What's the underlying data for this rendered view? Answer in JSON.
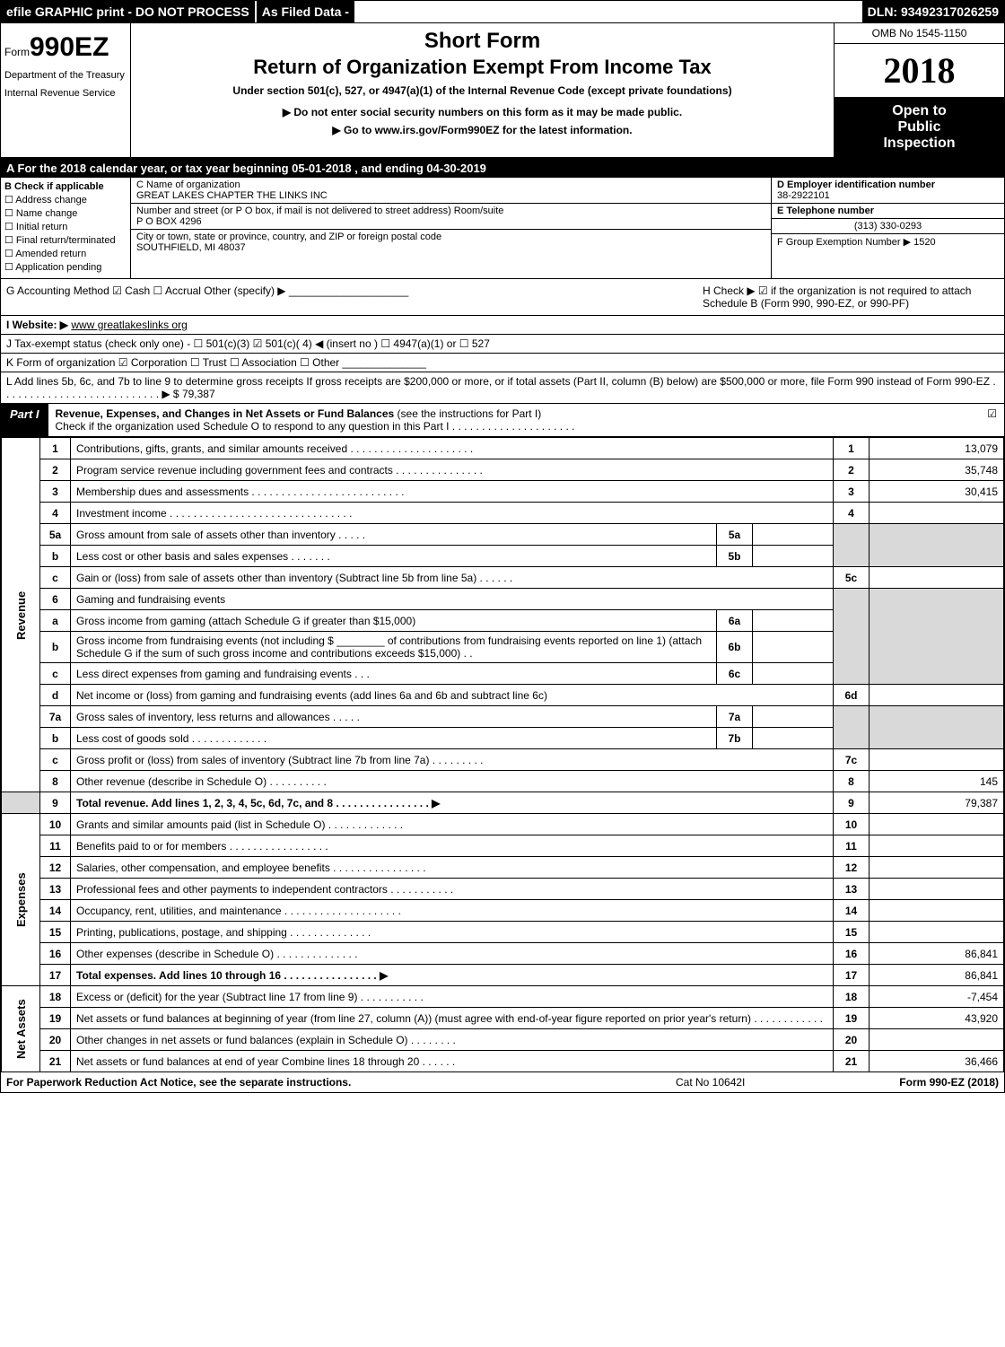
{
  "topstrip": {
    "efile": "efile GRAPHIC print - DO NOT PROCESS",
    "asfiled": "As Filed Data -",
    "dln": "DLN: 93492317026259"
  },
  "header": {
    "form_prefix": "Form",
    "form_number": "990EZ",
    "dept1": "Department of the Treasury",
    "dept2": "Internal Revenue Service",
    "short_form": "Short Form",
    "return_of": "Return of Organization Exempt From Income Tax",
    "under_section": "Under section 501(c), 527, or 4947(a)(1) of the Internal Revenue Code (except private foundations)",
    "do_not_enter": "▶ Do not enter social security numbers on this form as it may be made public.",
    "go_to": "▶ Go to www.irs.gov/Form990EZ for the latest information.",
    "omb": "OMB No  1545-1150",
    "year": "2018",
    "open_to": "Open to",
    "public": "Public",
    "inspection": "Inspection"
  },
  "rowA": "A   For the 2018 calendar year, or tax year beginning 05-01-2018            , and ending 04-30-2019",
  "colB": {
    "title": "B  Check if applicable",
    "addr_change": "☐ Address change",
    "name_change": "☐ Name change",
    "initial": "☐ Initial return",
    "final": "☐ Final return/terminated",
    "amended": "☐ Amended return",
    "pending": "☐ Application pending"
  },
  "colC": {
    "name_label": "C Name of organization",
    "name_val": "GREAT LAKES CHAPTER THE LINKS INC",
    "addr_label": "Number and street (or P  O  box, if mail is not delivered to street address)  Room/suite",
    "addr_val": "P O BOX 4296",
    "city_label": "City or town, state or province, country, and ZIP or foreign postal code",
    "city_val": "SOUTHFIELD, MI  48037"
  },
  "colDE": {
    "d_label": "D Employer identification number",
    "d_val": "38-2922101",
    "e_label": "E Telephone number",
    "e_val": "(313) 330-0293",
    "f_label": "F Group Exemption Number   ▶ 1520"
  },
  "rowG": "G Accounting Method     ☑ Cash   ☐ Accrual   Other (specify) ▶ ____________________",
  "rowH": "H   Check ▶  ☑ if the organization is not required to attach Schedule B (Form 990, 990-EZ, or 990-PF)",
  "rowI": "I Website: ▶ www greatlakeslinks org",
  "rowJ": "J Tax-exempt status (check only one) - ☐ 501(c)(3)  ☑ 501(c)( 4) ◀ (insert no ) ☐ 4947(a)(1) or ☐ 527",
  "rowK": "K Form of organization    ☑ Corporation   ☐ Trust   ☐ Association   ☐ Other  ______________",
  "rowL": "L Add lines 5b, 6c, and 7b to line 9 to determine gross receipts  If gross receipts are $200,000 or more, or if total assets (Part II, column (B) below) are $500,000 or more, file Form 990 instead of Form 990-EZ  .  .  .  .  .  .  .  .  .  .  .  .  .  .  .  .  .  .  .  .  .  .  .  .  .  .  .  ▶ $ 79,387",
  "part1": {
    "tab": "Part I",
    "title_bold": "Revenue, Expenses, and Changes in Net Assets or Fund Balances",
    "title_rest": " (see the instructions for Part I)",
    "check_line": "Check if the organization used Schedule O to respond to any question in this Part I  .  .  .  .  .  .  .  .  .  .  .  .  .  .  .  .  .  .  .  .  .",
    "check_sym": "☑"
  },
  "side": {
    "revenue": "Revenue",
    "expenses": "Expenses",
    "netassets": "Net Assets"
  },
  "lines": {
    "l1": {
      "num": "1",
      "desc": "Contributions, gifts, grants, and similar amounts received  .  .  .  .  .  .  .  .  .  .  .  .  .  .  .  .  .  .  .  .  .",
      "rnum": "1",
      "amt": "13,079"
    },
    "l2": {
      "num": "2",
      "desc": "Program service revenue including government fees and contracts  .  .  .  .  .  .  .  .  .  .  .  .  .  .  .",
      "rnum": "2",
      "amt": "35,748"
    },
    "l3": {
      "num": "3",
      "desc": "Membership dues and assessments  .  .  .  .  .  .  .  .  .  .  .  .  .  .  .  .  .  .  .  .  .  .  .  .  .  .",
      "rnum": "3",
      "amt": "30,415"
    },
    "l4": {
      "num": "4",
      "desc": "Investment income  .  .  .  .  .  .  .  .  .  .  .  .  .  .  .  .  .  .  .  .  .  .  .  .  .  .  .  .  .  .  .",
      "rnum": "4",
      "amt": ""
    },
    "l5a": {
      "num": "5a",
      "desc": "Gross amount from sale of assets other than inventory  .  .  .  .  .",
      "sublabel": "5a",
      "subval": ""
    },
    "l5b": {
      "num": "b",
      "desc": "Less  cost or other basis and sales expenses  .  .  .  .  .  .  .",
      "sublabel": "5b",
      "subval": ""
    },
    "l5c": {
      "num": "c",
      "desc": "Gain or (loss) from sale of assets other than inventory (Subtract line 5b from line 5a) .  .  .  .  .  .",
      "rnum": "5c",
      "amt": ""
    },
    "l6": {
      "num": "6",
      "desc": "Gaming and fundraising events"
    },
    "l6a": {
      "num": "a",
      "desc": "Gross income from gaming (attach Schedule G if greater than $15,000)",
      "sublabel": "6a",
      "subval": ""
    },
    "l6b": {
      "num": "b",
      "desc": "Gross income from fundraising events (not including $ ________ of contributions from fundraising events reported on line 1) (attach Schedule G if the sum of such gross income and contributions exceeds $15,000)     .   .",
      "sublabel": "6b",
      "subval": ""
    },
    "l6c": {
      "num": "c",
      "desc": "Less  direct expenses from gaming and fundraising events      .   .   .",
      "sublabel": "6c",
      "subval": ""
    },
    "l6d": {
      "num": "d",
      "desc": "Net income or (loss) from gaming and fundraising events (add lines 6a and 6b and subtract line 6c)",
      "rnum": "6d",
      "amt": ""
    },
    "l7a": {
      "num": "7a",
      "desc": "Gross sales of inventory, less returns and allowances  .  .  .  .  .",
      "sublabel": "7a",
      "subval": ""
    },
    "l7b": {
      "num": "b",
      "desc": "Less  cost of goods sold           .  .  .  .  .  .  .  .  .  .  .  .  .",
      "sublabel": "7b",
      "subval": ""
    },
    "l7c": {
      "num": "c",
      "desc": "Gross profit or (loss) from sales of inventory (Subtract line 7b from line 7a)  .  .  .  .  .  .  .  .  .",
      "rnum": "7c",
      "amt": ""
    },
    "l8": {
      "num": "8",
      "desc": "Other revenue (describe in Schedule O)                 .  .  .  .  .  .  .  .  .  .",
      "rnum": "8",
      "amt": "145"
    },
    "l9": {
      "num": "9",
      "desc": "Total revenue. Add lines 1, 2, 3, 4, 5c, 6d, 7c, and 8  .  .  .  .  .  .  .  .  .  .  .  .  .  .  .  .   ▶",
      "rnum": "9",
      "amt": "79,387"
    },
    "l10": {
      "num": "10",
      "desc": "Grants and similar amounts paid (list in Schedule O)            .  .  .  .  .  .  .  .  .  .  .  .  .",
      "rnum": "10",
      "amt": ""
    },
    "l11": {
      "num": "11",
      "desc": "Benefits paid to or for members                 .  .  .  .  .  .  .  .  .  .  .  .  .  .  .  .  .",
      "rnum": "11",
      "amt": ""
    },
    "l12": {
      "num": "12",
      "desc": "Salaries, other compensation, and employee benefits  .  .  .  .  .  .  .  .  .  .  .  .  .  .  .  .",
      "rnum": "12",
      "amt": ""
    },
    "l13": {
      "num": "13",
      "desc": "Professional fees and other payments to independent contractors   .  .  .  .  .  .  .  .  .  .  .",
      "rnum": "13",
      "amt": ""
    },
    "l14": {
      "num": "14",
      "desc": "Occupancy, rent, utilities, and maintenance .  .  .  .  .  .  .  .  .  .  .  .  .  .  .  .  .  .  .  .",
      "rnum": "14",
      "amt": ""
    },
    "l15": {
      "num": "15",
      "desc": "Printing, publications, postage, and shipping              .  .  .  .  .  .  .  .  .  .  .  .  .  .",
      "rnum": "15",
      "amt": ""
    },
    "l16": {
      "num": "16",
      "desc": "Other expenses (describe in Schedule O)                  .  .  .  .  .  .  .  .  .  .  .  .  .  .",
      "rnum": "16",
      "amt": "86,841"
    },
    "l17": {
      "num": "17",
      "desc": "Total expenses. Add lines 10 through 16         .  .  .  .  .  .  .  .  .  .  .  .  .  .  .  .   ▶",
      "rnum": "17",
      "amt": "86,841"
    },
    "l18": {
      "num": "18",
      "desc": "Excess or (deficit) for the year (Subtract line 17 from line 9)       .  .  .  .  .  .  .  .  .  .  .",
      "rnum": "18",
      "amt": "-7,454"
    },
    "l19": {
      "num": "19",
      "desc": "Net assets or fund balances at beginning of year (from line 27, column (A)) (must agree with end-of-year figure reported on prior year's return)               .  .  .  .  .  .  .  .  .  .  .  .",
      "rnum": "19",
      "amt": "43,920"
    },
    "l20": {
      "num": "20",
      "desc": "Other changes in net assets or fund balances (explain in Schedule O)      .  .  .  .  .  .  .  .",
      "rnum": "20",
      "amt": ""
    },
    "l21": {
      "num": "21",
      "desc": "Net assets or fund balances at end of year  Combine lines 18 through 20         .  .  .  .  .  .",
      "rnum": "21",
      "amt": "36,466"
    }
  },
  "footer": {
    "left": "For Paperwork Reduction Act Notice, see the separate instructions.",
    "mid": "Cat  No  10642I",
    "right": "Form 990-EZ (2018)"
  },
  "colors": {
    "black": "#000000",
    "white": "#ffffff",
    "grey": "#d9d9d9"
  }
}
